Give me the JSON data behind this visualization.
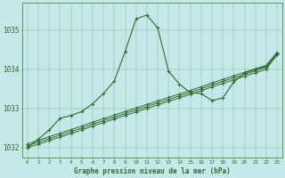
{
  "title": "Graphe pression niveau de la mer (hPa)",
  "bg_color": "#c5e8e8",
  "grid_color": "#5a9a5a",
  "line_color": "#2d6a2d",
  "hours": [
    0,
    1,
    2,
    3,
    4,
    5,
    6,
    7,
    8,
    9,
    10,
    11,
    12,
    13,
    14,
    15,
    16,
    17,
    18,
    19,
    20,
    21,
    22,
    23
  ],
  "peak_series": [
    1032.0,
    1032.22,
    1032.45,
    1032.75,
    1032.82,
    1032.92,
    1033.12,
    1033.38,
    1033.7,
    1034.45,
    1035.28,
    1035.38,
    1035.05,
    1033.95,
    1033.62,
    1033.4,
    1033.38,
    1033.2,
    1033.27,
    1033.67,
    1033.9,
    1034.0,
    1034.07,
    1034.37
  ],
  "linear1": [
    1032.0,
    1032.09,
    1032.18,
    1032.27,
    1032.36,
    1032.45,
    1032.55,
    1032.64,
    1032.73,
    1032.82,
    1032.91,
    1033.0,
    1033.09,
    1033.18,
    1033.27,
    1033.36,
    1033.45,
    1033.55,
    1033.64,
    1033.73,
    1033.82,
    1033.91,
    1034.0,
    1034.37
  ],
  "linear2": [
    1032.05,
    1032.14,
    1032.23,
    1032.32,
    1032.41,
    1032.5,
    1032.6,
    1032.69,
    1032.78,
    1032.87,
    1032.96,
    1033.05,
    1033.14,
    1033.23,
    1033.32,
    1033.41,
    1033.5,
    1033.6,
    1033.69,
    1033.78,
    1033.87,
    1033.96,
    1034.05,
    1034.4
  ],
  "linear3": [
    1032.1,
    1032.19,
    1032.28,
    1032.37,
    1032.46,
    1032.55,
    1032.65,
    1032.74,
    1032.83,
    1032.92,
    1033.01,
    1033.1,
    1033.19,
    1033.28,
    1033.37,
    1033.46,
    1033.55,
    1033.65,
    1033.74,
    1033.83,
    1033.92,
    1034.01,
    1034.1,
    1034.43
  ],
  "ylim": [
    1031.75,
    1035.7
  ],
  "yticks": [
    1032,
    1033,
    1034,
    1035
  ],
  "xlim": [
    -0.5,
    23.5
  ],
  "figsize": [
    3.2,
    2.0
  ],
  "dpi": 100
}
